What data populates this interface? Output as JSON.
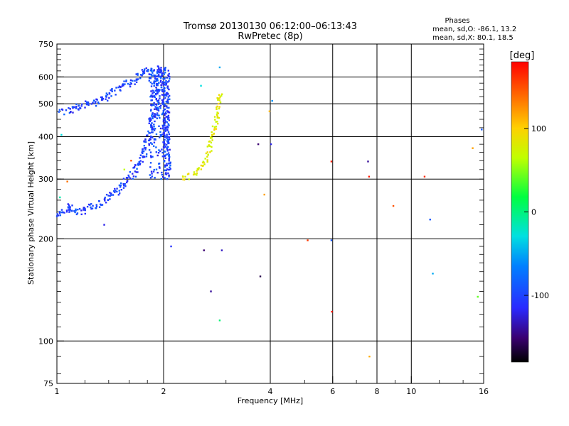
{
  "chart_data": {
    "type": "scatter",
    "title": "Tromsø 20130130 06:12:00–06:13:43",
    "subtitle": "RwPretec (8p)",
    "xlabel": "Frequency [MHz]",
    "ylabel": "Stationary phase Virtual Height [km]",
    "x_scale": "log",
    "y_scale": "log",
    "xlim": [
      1,
      16
    ],
    "ylim": [
      75,
      750
    ],
    "x_ticks": [
      1,
      2,
      4,
      6,
      8,
      10,
      16
    ],
    "x_tick_labels": [
      "1",
      "2",
      "4",
      "6",
      "8",
      "10",
      "16"
    ],
    "x_grid": [
      2,
      4,
      6,
      8,
      10
    ],
    "y_ticks": [
      75,
      100,
      200,
      300,
      400,
      500,
      600,
      750
    ],
    "y_tick_labels": [
      "75",
      "100",
      "200",
      "300",
      "400",
      "500",
      "600",
      "750"
    ],
    "y_grid": [
      100,
      200,
      300,
      400,
      500,
      600
    ],
    "grid": true,
    "stats": {
      "heading": "Phases",
      "line_o": "mean, sd,O: -86.1, 13.2",
      "line_x": "mean, sd,X:  80.1, 18.5"
    },
    "colorbar": {
      "label": "[deg]",
      "range": [
        -180,
        180
      ],
      "ticks": [
        100,
        0,
        -100
      ],
      "tick_labels": [
        "100",
        "0",
        "-100"
      ]
    },
    "o_trace": {
      "phase": -100,
      "color": "#1e46ff",
      "points": [
        [
          1.01,
          235
        ],
        [
          1.03,
          240
        ],
        [
          1.06,
          238
        ],
        [
          1.08,
          250
        ],
        [
          1.12,
          240
        ],
        [
          1.18,
          240
        ],
        [
          1.22,
          245
        ],
        [
          1.28,
          250
        ],
        [
          1.33,
          255
        ],
        [
          1.38,
          262
        ],
        [
          1.42,
          268
        ],
        [
          1.47,
          275
        ],
        [
          1.52,
          285
        ],
        [
          1.56,
          295
        ],
        [
          1.62,
          305
        ],
        [
          1.68,
          322
        ],
        [
          1.74,
          345
        ],
        [
          1.78,
          370
        ],
        [
          1.82,
          400
        ],
        [
          1.86,
          450
        ],
        [
          1.89,
          520
        ],
        [
          1.91,
          580
        ],
        [
          1.93,
          620
        ],
        [
          1.96,
          640
        ],
        [
          1.99,
          620
        ],
        [
          2.01,
          560
        ],
        [
          2.03,
          470
        ],
        [
          2.04,
          400
        ],
        [
          2.05,
          340
        ],
        [
          2.06,
          305
        ],
        [
          1.03,
          470
        ],
        [
          1.1,
          480
        ],
        [
          1.22,
          500
        ],
        [
          1.3,
          505
        ],
        [
          1.4,
          530
        ],
        [
          1.5,
          555
        ],
        [
          1.6,
          575
        ],
        [
          1.7,
          600
        ],
        [
          1.8,
          630
        ],
        [
          1.75,
          620
        ]
      ]
    },
    "x_trace": {
      "phase": 80,
      "color": "#c8e632",
      "points": [
        [
          2.25,
          300
        ],
        [
          2.32,
          302
        ],
        [
          2.4,
          308
        ],
        [
          2.48,
          315
        ],
        [
          2.55,
          325
        ],
        [
          2.62,
          340
        ],
        [
          2.68,
          360
        ],
        [
          2.73,
          385
        ],
        [
          2.78,
          420
        ],
        [
          2.82,
          460
        ],
        [
          2.85,
          500
        ],
        [
          2.88,
          540
        ]
      ]
    },
    "scatter": [
      {
        "x": 1.02,
        "y": 265,
        "phase": -20
      },
      {
        "x": 1.03,
        "y": 405,
        "phase": -30
      },
      {
        "x": 1.07,
        "y": 295,
        "phase": 140
      },
      {
        "x": 1.36,
        "y": 220,
        "phase": -120
      },
      {
        "x": 1.55,
        "y": 320,
        "phase": 60
      },
      {
        "x": 1.62,
        "y": 340,
        "phase": 150
      },
      {
        "x": 2.1,
        "y": 190,
        "phase": -110
      },
      {
        "x": 2.55,
        "y": 565,
        "phase": -30
      },
      {
        "x": 2.6,
        "y": 185,
        "phase": -150
      },
      {
        "x": 2.72,
        "y": 140,
        "phase": -140
      },
      {
        "x": 2.88,
        "y": 640,
        "phase": -50
      },
      {
        "x": 2.88,
        "y": 115,
        "phase": -10
      },
      {
        "x": 2.92,
        "y": 185,
        "phase": -130
      },
      {
        "x": 3.7,
        "y": 380,
        "phase": -150
      },
      {
        "x": 3.75,
        "y": 155,
        "phase": -160
      },
      {
        "x": 3.85,
        "y": 270,
        "phase": 120
      },
      {
        "x": 3.98,
        "y": 475,
        "phase": 110
      },
      {
        "x": 4.02,
        "y": 380,
        "phase": -120
      },
      {
        "x": 4.05,
        "y": 510,
        "phase": -60
      },
      {
        "x": 5.1,
        "y": 198,
        "phase": 160
      },
      {
        "x": 5.95,
        "y": 198,
        "phase": -90
      },
      {
        "x": 5.95,
        "y": 338,
        "phase": 170
      },
      {
        "x": 5.97,
        "y": 122,
        "phase": 175
      },
      {
        "x": 7.55,
        "y": 338,
        "phase": -140
      },
      {
        "x": 7.6,
        "y": 305,
        "phase": 170
      },
      {
        "x": 7.62,
        "y": 90,
        "phase": 115
      },
      {
        "x": 8.9,
        "y": 250,
        "phase": 150
      },
      {
        "x": 10.9,
        "y": 305,
        "phase": 165
      },
      {
        "x": 11.3,
        "y": 228,
        "phase": -90
      },
      {
        "x": 11.5,
        "y": 158,
        "phase": -50
      },
      {
        "x": 14.9,
        "y": 370,
        "phase": 120
      },
      {
        "x": 15.4,
        "y": 135,
        "phase": 30
      },
      {
        "x": 15.8,
        "y": 420,
        "phase": -90
      }
    ]
  }
}
